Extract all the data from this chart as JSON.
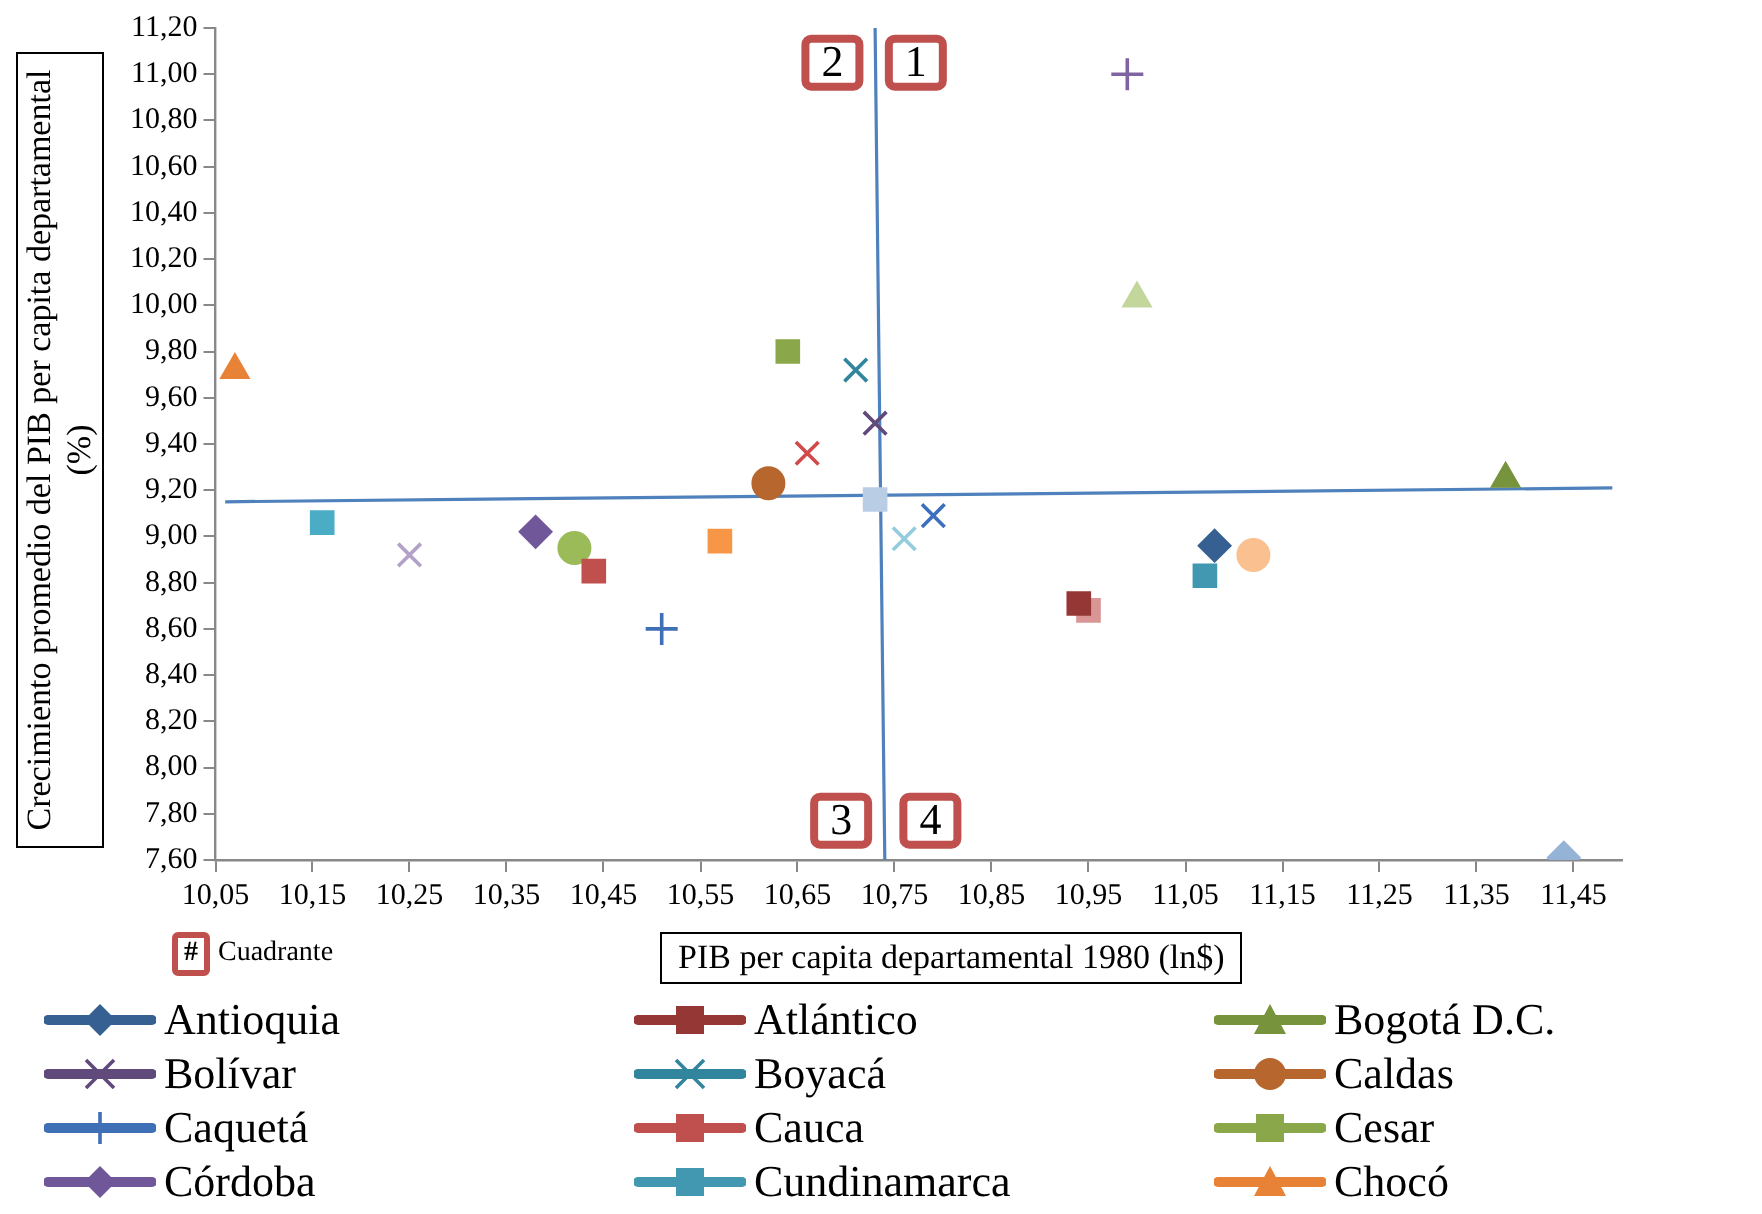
{
  "chart_data": {
    "type": "scatter",
    "xlabel": "PIB per capita departamental 1980  (ln$)",
    "ylabel": "Crecimiento promedio del PIB per capita departamental (%)",
    "xlim": [
      10.05,
      11.5
    ],
    "xticks": [
      {
        "value": 10.05,
        "label": "10,05"
      },
      {
        "value": 10.15,
        "label": "10,15"
      },
      {
        "value": 10.25,
        "label": "10,25"
      },
      {
        "value": 10.35,
        "label": "10,35"
      },
      {
        "value": 10.45,
        "label": "10,45"
      },
      {
        "value": 10.55,
        "label": "10,55"
      },
      {
        "value": 10.65,
        "label": "10,65"
      },
      {
        "value": 10.75,
        "label": "10,75"
      },
      {
        "value": 10.85,
        "label": "10,85"
      },
      {
        "value": 10.95,
        "label": "10,95"
      },
      {
        "value": 11.05,
        "label": "11,05"
      },
      {
        "value": 11.15,
        "label": "11,15"
      },
      {
        "value": 11.25,
        "label": "11,25"
      },
      {
        "value": 11.35,
        "label": "11,35"
      },
      {
        "value": 11.45,
        "label": "11,45"
      }
    ],
    "ylim": [
      7.6,
      11.2
    ],
    "yticks": [
      {
        "value": 7.6,
        "label": "7,60"
      },
      {
        "value": 7.8,
        "label": "7,80"
      },
      {
        "value": 8.0,
        "label": "8,00"
      },
      {
        "value": 8.2,
        "label": "8,20"
      },
      {
        "value": 8.4,
        "label": "8,40"
      },
      {
        "value": 8.6,
        "label": "8,60"
      },
      {
        "value": 8.8,
        "label": "8,80"
      },
      {
        "value": 9.0,
        "label": "9,00"
      },
      {
        "value": 9.2,
        "label": "9,20"
      },
      {
        "value": 9.4,
        "label": "9,40"
      },
      {
        "value": 9.6,
        "label": "9,60"
      },
      {
        "value": 9.8,
        "label": "9,80"
      },
      {
        "value": 10.0,
        "label": "10,00"
      },
      {
        "value": 10.2,
        "label": "10,20"
      },
      {
        "value": 10.4,
        "label": "10,40"
      },
      {
        "value": 10.6,
        "label": "10,60"
      },
      {
        "value": 10.8,
        "label": "10,80"
      },
      {
        "value": 11.0,
        "label": "11,00"
      },
      {
        "value": 11.2,
        "label": "11,20"
      }
    ],
    "grid": false,
    "legend": "bottom",
    "annotations": [
      {
        "text": "2",
        "x": 10.686,
        "y": 11.05
      },
      {
        "text": "1",
        "x": 10.772,
        "y": 11.05
      },
      {
        "text": "3",
        "x": 10.695,
        "y": 7.77
      },
      {
        "text": "4",
        "x": 10.787,
        "y": 7.77
      },
      "#",
      "Cuadrante"
    ],
    "series": [
      {
        "name": "Antioquia",
        "color": "#376092",
        "marker": "diamond",
        "x": [
          11.08
        ],
        "values": [
          8.96
        ]
      },
      {
        "name": "Atlántico",
        "color": "#953735",
        "marker": "square",
        "x": [
          10.94
        ],
        "values": [
          8.71
        ]
      },
      {
        "name": "Bogotá D.C.",
        "color": "#77933c",
        "marker": "triangle",
        "x": [
          11.38
        ],
        "values": [
          9.25
        ]
      },
      {
        "name": "Bolívar",
        "color": "#604a7b",
        "marker": "cross",
        "x": [
          10.73
        ],
        "values": [
          9.49
        ]
      },
      {
        "name": "Boyacá",
        "color": "#31859c",
        "marker": "cross",
        "x": [
          10.71
        ],
        "values": [
          9.72
        ]
      },
      {
        "name": "Caldas",
        "color": "#b7672e",
        "marker": "circle",
        "x": [
          10.62
        ],
        "values": [
          9.23
        ]
      },
      {
        "name": "Caquetá",
        "color": "#3f6fb5",
        "marker": "plus",
        "x": [
          10.51
        ],
        "values": [
          8.6
        ]
      },
      {
        "name": "Cauca",
        "color": "#c0504d",
        "marker": "square",
        "x": [
          10.44
        ],
        "values": [
          8.85
        ]
      },
      {
        "name": "Cesar",
        "color": "#8aa84a",
        "marker": "square",
        "x": [
          10.64
        ],
        "values": [
          9.8
        ]
      },
      {
        "name": "Córdoba",
        "color": "#6f579a",
        "marker": "diamond",
        "x": [
          10.38
        ],
        "values": [
          9.02
        ]
      },
      {
        "name": "Cundinamarca",
        "color": "#4198b0",
        "marker": "square",
        "x": [
          11.07
        ],
        "values": [
          8.83
        ]
      },
      {
        "name": "Chocó",
        "color": "#e88237",
        "marker": "triangle",
        "x": [
          10.07
        ],
        "values": [
          9.72
        ]
      },
      {
        "color": "#3d6fbf",
        "marker": "cross",
        "x": [
          10.79
        ],
        "values": [
          9.09
        ]
      },
      {
        "color": "#d04a4a",
        "marker": "cross",
        "x": [
          10.66
        ],
        "values": [
          9.36
        ]
      },
      {
        "color": "#9bbb59",
        "marker": "circle",
        "x": [
          10.42
        ],
        "values": [
          8.95
        ]
      },
      {
        "color": "#8064a2",
        "marker": "plus",
        "x": [
          10.99
        ],
        "values": [
          11.0
        ]
      },
      {
        "color": "#4bacc6",
        "marker": "square",
        "x": [
          10.16
        ],
        "values": [
          9.06
        ]
      },
      {
        "color": "#f79646",
        "marker": "square",
        "x": [
          10.57
        ],
        "values": [
          8.98
        ]
      },
      {
        "color": "#95b3d7",
        "marker": "diamond",
        "x": [
          11.44
        ],
        "values": [
          7.61
        ]
      },
      {
        "color": "#d99694",
        "marker": "square",
        "x": [
          10.95
        ],
        "values": [
          8.68
        ]
      },
      {
        "color": "#c3d69b",
        "marker": "triangle",
        "x": [
          11.0
        ],
        "values": [
          10.03
        ]
      },
      {
        "color": "#b3a2c7",
        "marker": "cross",
        "x": [
          10.25
        ],
        "values": [
          8.92
        ]
      },
      {
        "color": "#93cddd",
        "marker": "cross",
        "x": [
          10.76
        ],
        "values": [
          8.99
        ]
      },
      {
        "color": "#fac090",
        "marker": "circle",
        "x": [
          11.12
        ],
        "values": [
          8.92
        ]
      },
      {
        "color": "#b9cde5",
        "marker": "square",
        "x": [
          10.73
        ],
        "values": [
          9.16
        ]
      },
      {
        "type": "line",
        "color": "#4f81bd",
        "marker": "none",
        "x": [
          10.06,
          11.49
        ],
        "values": [
          9.15,
          9.21
        ]
      },
      {
        "type": "line",
        "color": "#4f81bd",
        "marker": "none",
        "x": [
          10.73,
          10.74
        ],
        "values": [
          11.2,
          7.6
        ]
      }
    ]
  }
}
